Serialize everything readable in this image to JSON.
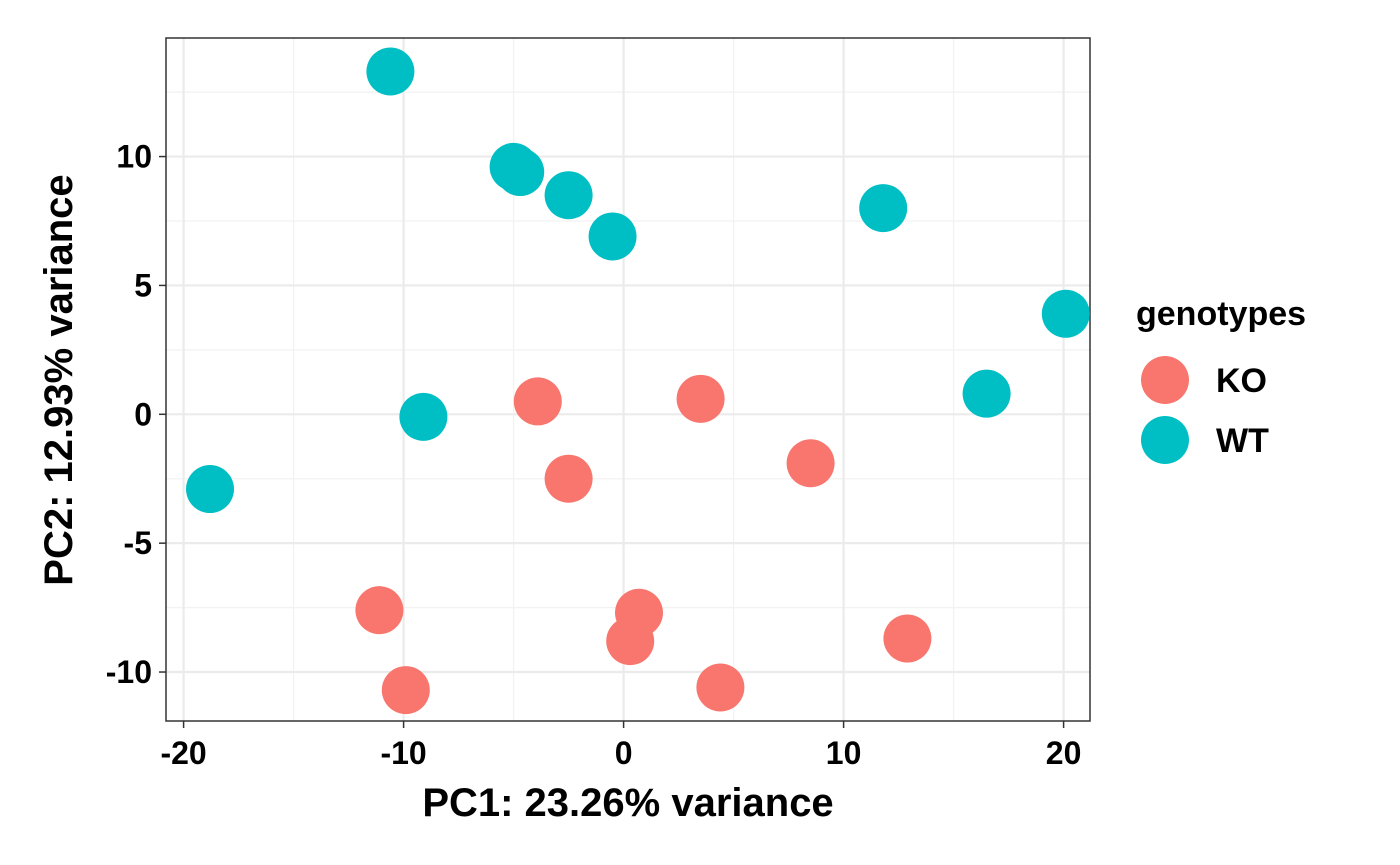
{
  "chart_data": {
    "type": "scatter",
    "xlabel": "PC1: 23.26% variance",
    "ylabel": "PC2: 12.93% variance",
    "xlim": [
      -20.8,
      21.2
    ],
    "ylim": [
      -11.9,
      14.6
    ],
    "x_ticks": [
      -20,
      -10,
      0,
      10,
      20
    ],
    "x_tick_labels": [
      "-20",
      "-10",
      "0",
      "10",
      "20"
    ],
    "y_ticks": [
      -10,
      -5,
      0,
      5,
      10
    ],
    "y_tick_labels": [
      "-10",
      "-5",
      "0",
      "5",
      "10"
    ],
    "grid": true,
    "legend": {
      "title": "genotypes",
      "position": "right",
      "entries": [
        "KO",
        "WT"
      ]
    },
    "series": [
      {
        "name": "KO",
        "color": "#F8766D",
        "points": [
          {
            "x": -3.9,
            "y": 0.5
          },
          {
            "x": -2.5,
            "y": -2.5
          },
          {
            "x": 3.5,
            "y": 0.6
          },
          {
            "x": 8.5,
            "y": -1.9
          },
          {
            "x": -11.1,
            "y": -7.6
          },
          {
            "x": -9.9,
            "y": -10.7
          },
          {
            "x": 0.7,
            "y": -7.7
          },
          {
            "x": 0.3,
            "y": -8.8
          },
          {
            "x": 4.4,
            "y": -10.6
          },
          {
            "x": 12.9,
            "y": -8.7
          }
        ]
      },
      {
        "name": "WT",
        "color": "#00BFC4",
        "points": [
          {
            "x": -10.6,
            "y": 13.3
          },
          {
            "x": -5.0,
            "y": 9.6
          },
          {
            "x": -4.7,
            "y": 9.4
          },
          {
            "x": -2.5,
            "y": 8.5
          },
          {
            "x": -0.5,
            "y": 6.9
          },
          {
            "x": 11.8,
            "y": 8.0
          },
          {
            "x": 20.1,
            "y": 3.9
          },
          {
            "x": 16.5,
            "y": 0.8
          },
          {
            "x": -9.1,
            "y": -0.1
          },
          {
            "x": -18.8,
            "y": -2.9
          }
        ]
      }
    ]
  }
}
